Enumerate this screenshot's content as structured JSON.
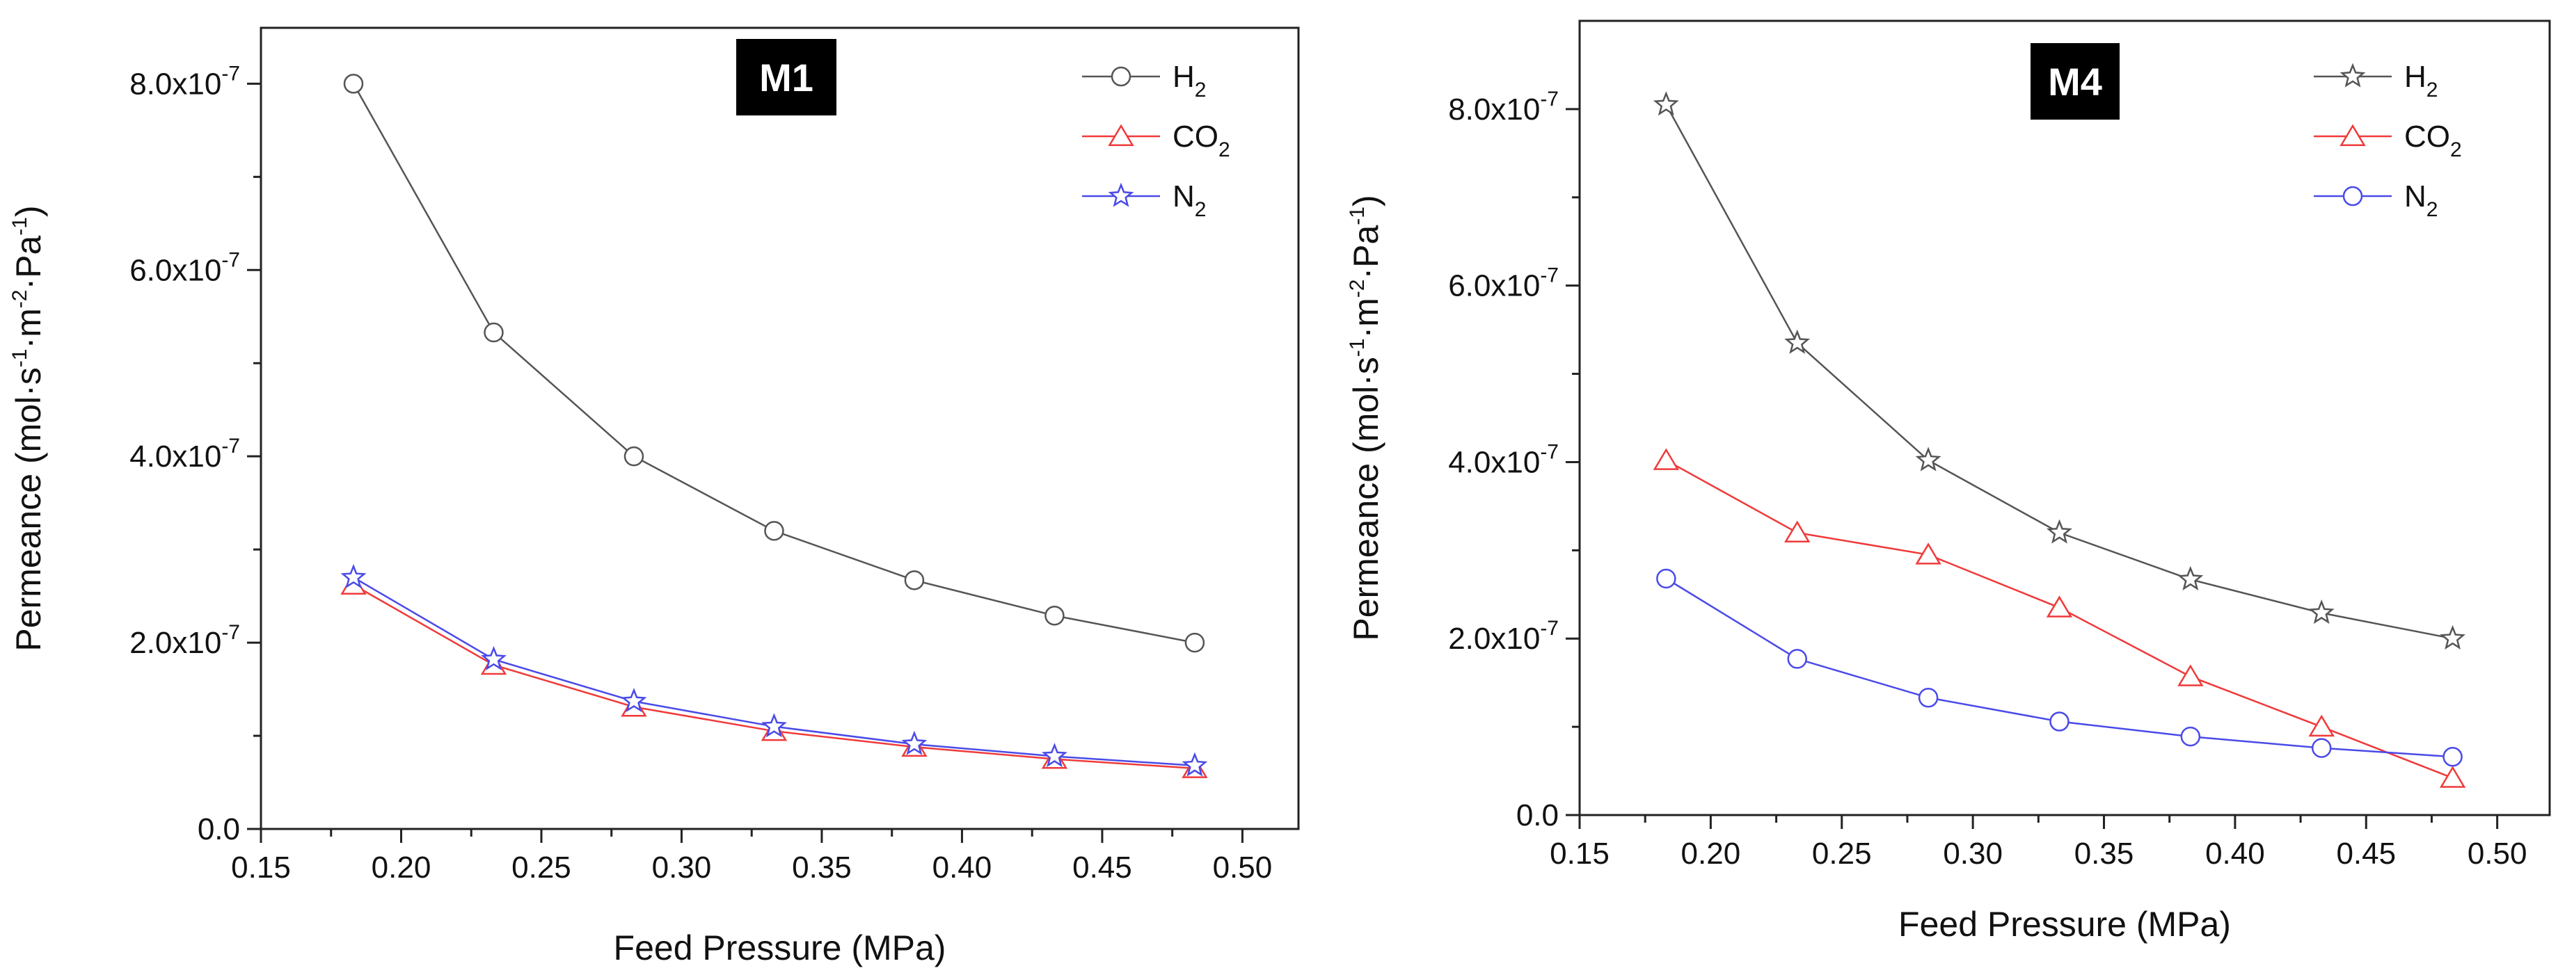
{
  "chart_data": [
    {
      "type": "line",
      "panel_label": "M1",
      "xlabel": "Feed Pressure (MPa)",
      "ylabel": "Permeance (mol·s-1·m-2·Pa-1)",
      "xlim": [
        0.15,
        0.52
      ],
      "ylim": [
        0,
        8.6e-07
      ],
      "xticks": [
        0.15,
        0.2,
        0.25,
        0.3,
        0.35,
        0.4,
        0.45,
        0.5
      ],
      "xtick_labels": [
        "0.15",
        "0.20",
        "0.25",
        "0.30",
        "0.35",
        "0.40",
        "0.45",
        "0.50"
      ],
      "yticks": [
        0,
        2e-07,
        4e-07,
        6e-07,
        8e-07
      ],
      "ytick_labels": [
        "0.0",
        "2.0x10-7",
        "4.0x10-7",
        "6.0x10-7",
        "8.0x10-7"
      ],
      "x": [
        0.183,
        0.233,
        0.283,
        0.333,
        0.383,
        0.433,
        0.483
      ],
      "series": [
        {
          "name": "H2",
          "label_base": "H",
          "label_sub": "2",
          "marker": "circle",
          "color": "#555555",
          "values": [
            8e-07,
            5.33e-07,
            4e-07,
            3.2e-07,
            2.67e-07,
            2.29e-07,
            2e-07
          ]
        },
        {
          "name": "CO2",
          "label_base": "CO",
          "label_sub": "2",
          "marker": "triangle",
          "color": "#f03a3a",
          "values": [
            2.62e-07,
            1.76e-07,
            1.31e-07,
            1.05e-07,
            8.8e-08,
            7.5e-08,
            6.5e-08
          ]
        },
        {
          "name": "N2",
          "label_base": "N",
          "label_sub": "2",
          "marker": "star",
          "color": "#4a4ae8",
          "values": [
            2.7e-07,
            1.82e-07,
            1.37e-07,
            1.1e-07,
            9.1e-08,
            7.8e-08,
            6.8e-08
          ]
        }
      ]
    },
    {
      "type": "line",
      "panel_label": "M4",
      "xlabel": "Feed Pressure (MPa)",
      "ylabel": "Permeance (mol·s-1·m-2·Pa-1)",
      "xlim": [
        0.15,
        0.52
      ],
      "ylim": [
        0,
        9e-07
      ],
      "xticks": [
        0.15,
        0.2,
        0.25,
        0.3,
        0.35,
        0.4,
        0.45,
        0.5
      ],
      "xtick_labels": [
        "0.15",
        "0.20",
        "0.25",
        "0.30",
        "0.35",
        "0.40",
        "0.45",
        "0.50"
      ],
      "yticks": [
        0,
        2e-07,
        4e-07,
        6e-07,
        8e-07
      ],
      "ytick_labels": [
        "0.0",
        "2.0x10-7",
        "4.0x10-7",
        "6.0x10-7",
        "8.0x10-7"
      ],
      "x": [
        0.183,
        0.233,
        0.283,
        0.333,
        0.383,
        0.433,
        0.483
      ],
      "series": [
        {
          "name": "H2",
          "label_base": "H",
          "label_sub": "2",
          "marker": "star",
          "color": "#555555",
          "values": [
            8.05e-07,
            5.35e-07,
            4.02e-07,
            3.2e-07,
            2.67e-07,
            2.29e-07,
            2e-07
          ]
        },
        {
          "name": "CO2",
          "label_base": "CO",
          "label_sub": "2",
          "marker": "triangle",
          "color": "#f03a3a",
          "values": [
            4.02e-07,
            3.2e-07,
            2.95e-07,
            2.35e-07,
            1.57e-07,
            1e-07,
            4.2e-08
          ]
        },
        {
          "name": "N2",
          "label_base": "N",
          "label_sub": "2",
          "marker": "circle",
          "color": "#4a4ae8",
          "values": [
            2.68e-07,
            1.77e-07,
            1.33e-07,
            1.06e-07,
            8.9e-08,
            7.6e-08,
            6.6e-08
          ]
        }
      ]
    }
  ]
}
